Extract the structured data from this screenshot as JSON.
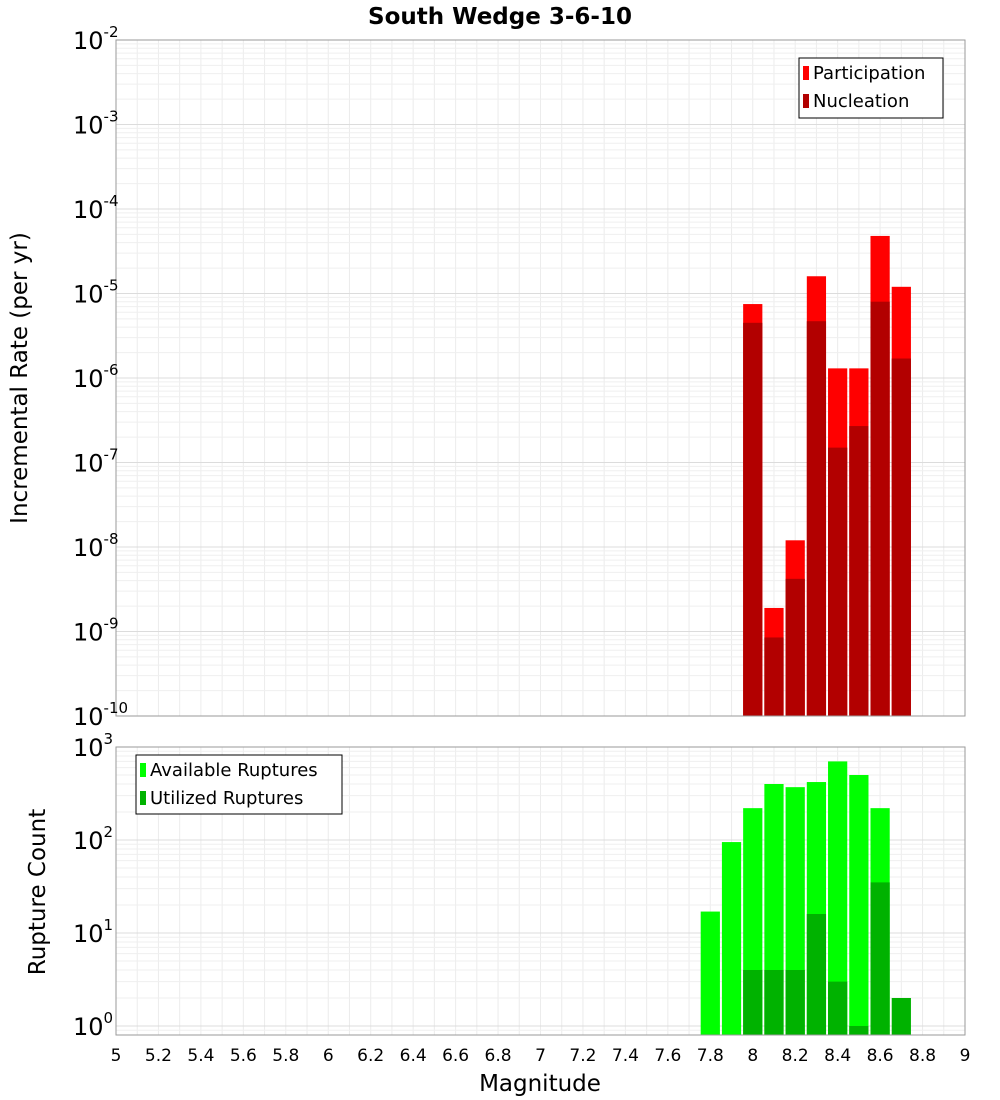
{
  "chart_data": [
    {
      "type": "bar",
      "title": "South Wedge 3-6-10",
      "ylabel": "Incremental Rate (per yr)",
      "yscale": "log",
      "ylim": [
        1e-10,
        0.01
      ],
      "xlim": [
        5,
        9
      ],
      "grid": true,
      "legend_position": "top-right",
      "y_ticks": [
        {
          "base": "10",
          "exp": "-10"
        },
        {
          "base": "10",
          "exp": "-9"
        },
        {
          "base": "10",
          "exp": "-8"
        },
        {
          "base": "10",
          "exp": "-7"
        },
        {
          "base": "10",
          "exp": "-6"
        },
        {
          "base": "10",
          "exp": "-5"
        },
        {
          "base": "10",
          "exp": "-4"
        },
        {
          "base": "10",
          "exp": "-3"
        },
        {
          "base": "10",
          "exp": "-2"
        }
      ],
      "x": [
        8.0,
        8.1,
        8.2,
        8.3,
        8.4,
        8.5,
        8.6,
        8.7
      ],
      "series": [
        {
          "name": "Participation",
          "color": "#ff0000",
          "values": [
            7.5e-06,
            1.9e-09,
            1.2e-08,
            1.6e-05,
            1.3e-06,
            1.3e-06,
            4.8e-05,
            1.2e-05
          ]
        },
        {
          "name": "Nucleation",
          "color": "#b20000",
          "values": [
            4.5e-06,
            8.5e-10,
            4.2e-09,
            4.7e-06,
            1.5e-07,
            2.7e-07,
            8e-06,
            1.7e-06
          ]
        }
      ]
    },
    {
      "type": "bar",
      "ylabel": "Rupture Count",
      "xlabel": "Magnitude",
      "yscale": "log",
      "ylim": [
        0.8,
        1000
      ],
      "xlim": [
        5,
        9
      ],
      "grid": true,
      "legend_position": "top-left",
      "y_ticks": [
        {
          "base": "10",
          "exp": "0"
        },
        {
          "base": "10",
          "exp": "1"
        },
        {
          "base": "10",
          "exp": "2"
        },
        {
          "base": "10",
          "exp": "3"
        }
      ],
      "x_tick_labels": [
        "5",
        "5.2",
        "5.4",
        "5.6",
        "5.8",
        "6",
        "6.2",
        "6.4",
        "6.6",
        "6.8",
        "7",
        "7.2",
        "7.4",
        "7.6",
        "7.8",
        "8",
        "8.2",
        "8.4",
        "8.6",
        "8.8",
        "9"
      ],
      "x": [
        7.8,
        7.9,
        8.0,
        8.1,
        8.2,
        8.3,
        8.4,
        8.5,
        8.6,
        8.7
      ],
      "series": [
        {
          "name": "Available Ruptures",
          "color": "#00ff00",
          "values": [
            17,
            95,
            220,
            400,
            370,
            420,
            700,
            500,
            220,
            null
          ]
        },
        {
          "name": "Utilized Ruptures",
          "color": "#00b200",
          "values": [
            null,
            null,
            4,
            4,
            4,
            16,
            3,
            1,
            35,
            2
          ]
        }
      ]
    }
  ]
}
